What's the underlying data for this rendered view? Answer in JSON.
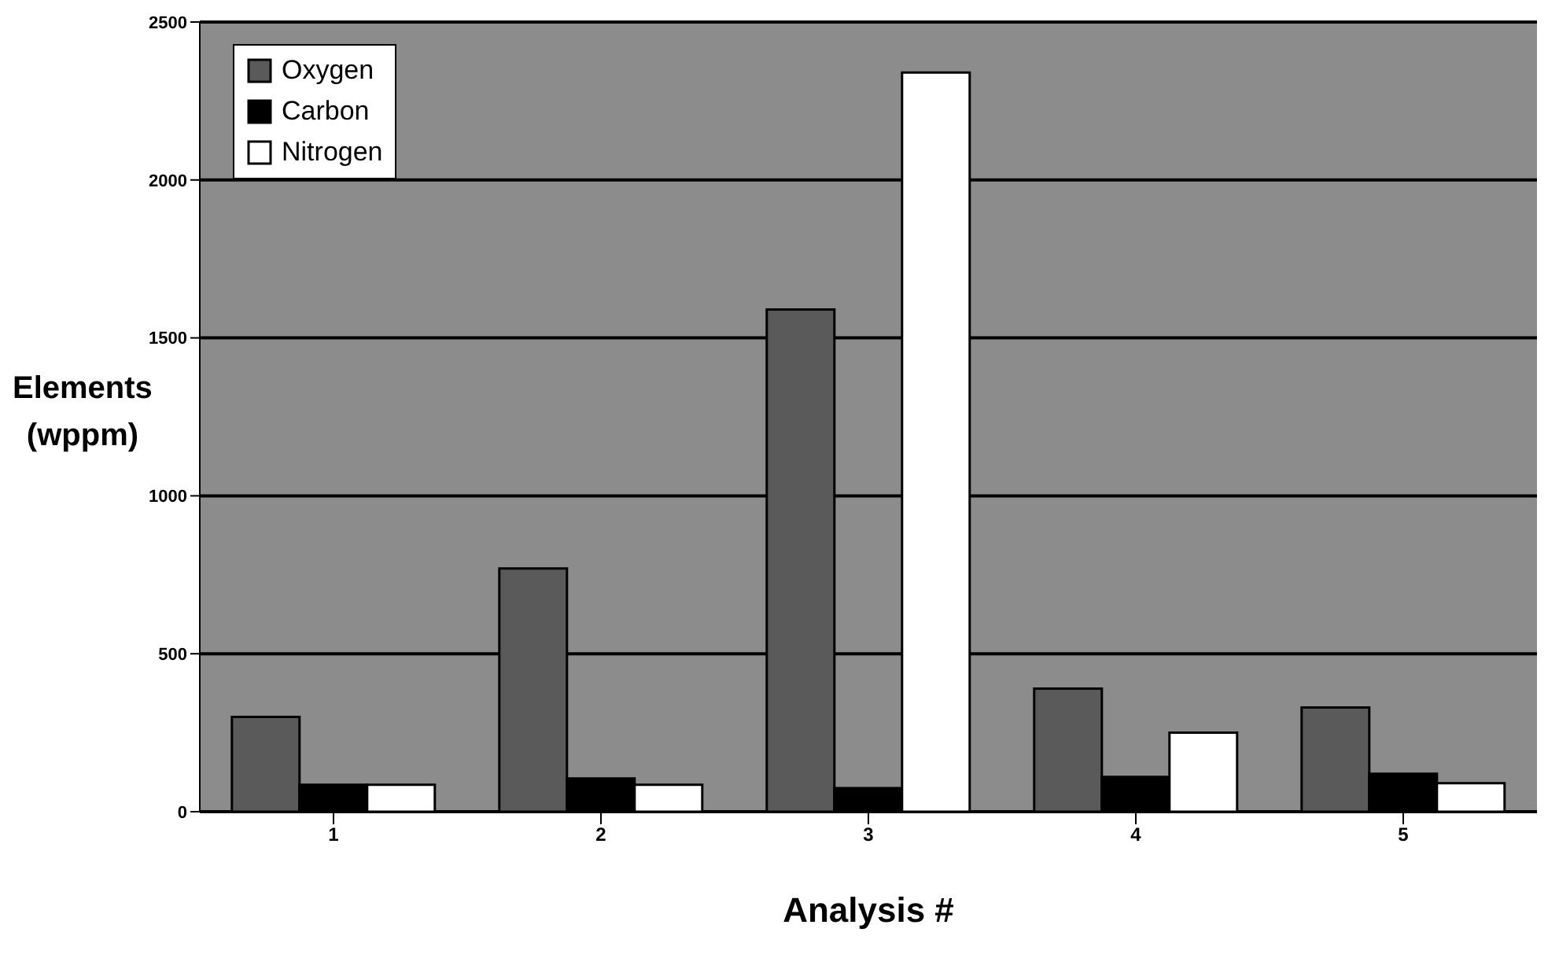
{
  "chart_data": {
    "type": "bar",
    "xlabel": "Analysis #",
    "ylabel": "Elements (wppm)",
    "categories": [
      "1",
      "2",
      "3",
      "4",
      "5"
    ],
    "series": [
      {
        "name": "Oxygen",
        "color": "#5a5a5a",
        "values": [
          300,
          770,
          1590,
          390,
          330
        ]
      },
      {
        "name": "Carbon",
        "color": "#000000",
        "values": [
          85,
          105,
          75,
          110,
          120
        ]
      },
      {
        "name": "Nitrogen",
        "color": "#ffffff",
        "values": [
          85,
          85,
          2340,
          250,
          90
        ]
      }
    ],
    "ylim": [
      0,
      2500
    ],
    "yticks": [
      0,
      500,
      1000,
      1500,
      2000,
      2500
    ],
    "grid": "y",
    "legend": "top left"
  }
}
